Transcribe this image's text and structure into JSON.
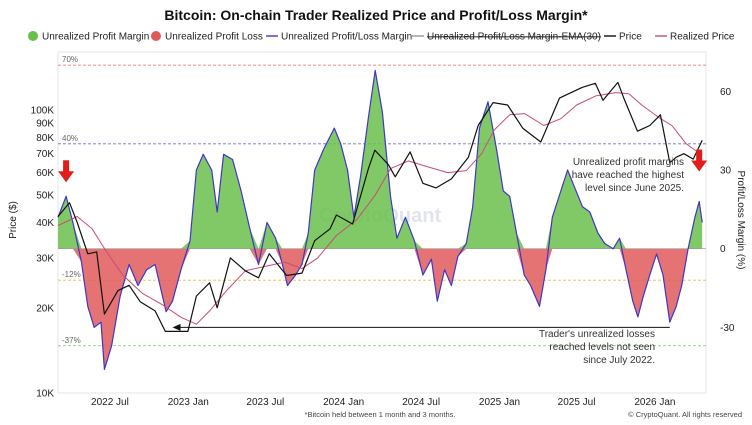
{
  "chart_data": {
    "type": "area",
    "title": "Bitcoin: On-chain Trader Realized Price and Profit/Loss Margin*",
    "footnote": "*Bitcoin held between 1 month and 3 months.",
    "credit": "© CryptoQuant. All rights reserved",
    "watermark": "CryptoQuant",
    "legend": [
      {
        "label": "Unrealized Profit Margin",
        "kind": "dot",
        "color": "#6abf4b"
      },
      {
        "label": "Unrealized Profit Loss",
        "kind": "dot",
        "color": "#e05a5a"
      },
      {
        "label": "Unrealized Profit/Loss Margin",
        "kind": "line",
        "color": "#3f35c9"
      },
      {
        "label": "Unrealized Profit/Loss Margin-EMA(30)",
        "kind": "line",
        "color": "#999999",
        "struck": true
      },
      {
        "label": "Price",
        "kind": "line",
        "color": "#111111"
      },
      {
        "label": "Realized Price",
        "kind": "line",
        "color": "#c44d7a"
      }
    ],
    "ylabel_left": "Price ($)",
    "ylabel_right": "Profit/Loss Margin (%)",
    "y_left": {
      "scale": "log",
      "min": 10000,
      "max": 160000,
      "ticks": [
        {
          "v": 10000,
          "label": "10K"
        },
        {
          "v": 20000,
          "label": "20K"
        },
        {
          "v": 30000,
          "label": "30K"
        },
        {
          "v": 40000,
          "label": "40K"
        },
        {
          "v": 50000,
          "label": "50K"
        },
        {
          "v": 60000,
          "label": "60K"
        },
        {
          "v": 70000,
          "label": "70K"
        },
        {
          "v": 80000,
          "label": "80K"
        },
        {
          "v": 90000,
          "label": "90K"
        },
        {
          "v": 100000,
          "label": "100K"
        }
      ]
    },
    "y_right": {
      "min": -55,
      "max": 75,
      "ticks": [
        {
          "v": 60,
          "label": "60"
        },
        {
          "v": 30,
          "label": "30"
        },
        {
          "v": 0,
          "label": "0"
        },
        {
          "v": -30,
          "label": "-30"
        }
      ]
    },
    "x_range": [
      "2022-03-01",
      "2026-05-01"
    ],
    "x_ticks": [
      {
        "date": "2022-07-01",
        "label": "2022 Jul"
      },
      {
        "date": "2023-01-01",
        "label": "2023 Jan"
      },
      {
        "date": "2023-07-01",
        "label": "2023 Jul"
      },
      {
        "date": "2024-01-01",
        "label": "2024 Jan"
      },
      {
        "date": "2024-07-01",
        "label": "2024 Jul"
      },
      {
        "date": "2025-01-01",
        "label": "2025 Jan"
      },
      {
        "date": "2025-07-01",
        "label": "2025 Jul"
      },
      {
        "date": "2026-01-01",
        "label": "2026 Jan"
      }
    ],
    "ref_lines": [
      {
        "v": 70,
        "label": "70%",
        "color": "#e06666"
      },
      {
        "v": 40,
        "label": "40%",
        "color": "#6b6fd6"
      },
      {
        "v": -12,
        "label": "-12%",
        "color": "#d9c24a"
      },
      {
        "v": -37,
        "label": "-37%",
        "color": "#7cc36a"
      }
    ],
    "annotations": [
      {
        "lines": [
          "Unrealized profit margins",
          "have reached the highest",
          "level since June 2025."
        ]
      },
      {
        "lines": [
          "Trader's unrealized losses",
          "reached levels not seen",
          "since July 2022."
        ]
      }
    ],
    "margin": {
      "name": "Unrealized Profit/Loss Margin",
      "points": [
        [
          "2022-03-01",
          12
        ],
        [
          "2022-03-20",
          20
        ],
        [
          "2022-04-05",
          10
        ],
        [
          "2022-04-25",
          -5
        ],
        [
          "2022-05-10",
          -22
        ],
        [
          "2022-05-25",
          -30
        ],
        [
          "2022-06-10",
          -28
        ],
        [
          "2022-06-18",
          -46
        ],
        [
          "2022-07-05",
          -37
        ],
        [
          "2022-07-25",
          -18
        ],
        [
          "2022-08-15",
          -6
        ],
        [
          "2022-09-05",
          -14
        ],
        [
          "2022-09-25",
          -8
        ],
        [
          "2022-10-15",
          -6
        ],
        [
          "2022-11-10",
          -24
        ],
        [
          "2022-11-25",
          -20
        ],
        [
          "2022-12-15",
          -8
        ],
        [
          "2023-01-05",
          3
        ],
        [
          "2023-01-20",
          30
        ],
        [
          "2023-02-05",
          36
        ],
        [
          "2023-02-25",
          30
        ],
        [
          "2023-03-10",
          14
        ],
        [
          "2023-03-25",
          36
        ],
        [
          "2023-04-15",
          34
        ],
        [
          "2023-05-05",
          22
        ],
        [
          "2023-05-25",
          8
        ],
        [
          "2023-06-15",
          -6
        ],
        [
          "2023-07-05",
          10
        ],
        [
          "2023-07-25",
          4
        ],
        [
          "2023-08-10",
          -6
        ],
        [
          "2023-08-22",
          -14
        ],
        [
          "2023-09-10",
          -10
        ],
        [
          "2023-09-25",
          -6
        ],
        [
          "2023-10-10",
          6
        ],
        [
          "2023-10-25",
          30
        ],
        [
          "2023-11-15",
          38
        ],
        [
          "2023-12-10",
          46
        ],
        [
          "2023-12-25",
          40
        ],
        [
          "2024-01-10",
          30
        ],
        [
          "2024-01-25",
          12
        ],
        [
          "2024-02-10",
          28
        ],
        [
          "2024-02-28",
          50
        ],
        [
          "2024-03-15",
          68
        ],
        [
          "2024-04-01",
          52
        ],
        [
          "2024-04-20",
          20
        ],
        [
          "2024-05-05",
          4
        ],
        [
          "2024-05-25",
          12
        ],
        [
          "2024-06-15",
          3
        ],
        [
          "2024-07-05",
          -10
        ],
        [
          "2024-07-25",
          -4
        ],
        [
          "2024-08-08",
          -20
        ],
        [
          "2024-08-25",
          -8
        ],
        [
          "2024-09-10",
          -14
        ],
        [
          "2024-09-25",
          -3
        ],
        [
          "2024-10-15",
          2
        ],
        [
          "2024-10-30",
          16
        ],
        [
          "2024-11-15",
          46
        ],
        [
          "2024-12-05",
          56
        ],
        [
          "2024-12-25",
          38
        ],
        [
          "2025-01-10",
          22
        ],
        [
          "2025-01-25",
          20
        ],
        [
          "2025-02-10",
          6
        ],
        [
          "2025-02-28",
          -10
        ],
        [
          "2025-03-15",
          -14
        ],
        [
          "2025-04-05",
          -22
        ],
        [
          "2025-04-20",
          -8
        ],
        [
          "2025-05-05",
          12
        ],
        [
          "2025-05-25",
          22
        ],
        [
          "2025-06-10",
          30
        ],
        [
          "2025-06-25",
          24
        ],
        [
          "2025-07-15",
          16
        ],
        [
          "2025-08-01",
          14
        ],
        [
          "2025-08-20",
          6
        ],
        [
          "2025-09-05",
          2
        ],
        [
          "2025-09-25",
          0
        ],
        [
          "2025-10-10",
          4
        ],
        [
          "2025-10-25",
          -8
        ],
        [
          "2025-11-10",
          -20
        ],
        [
          "2025-11-22",
          -26
        ],
        [
          "2025-12-05",
          -18
        ],
        [
          "2025-12-20",
          -10
        ],
        [
          "2026-01-05",
          -2
        ],
        [
          "2026-01-20",
          -10
        ],
        [
          "2026-02-05",
          -28
        ],
        [
          "2026-02-20",
          -22
        ],
        [
          "2026-03-05",
          -14
        ],
        [
          "2026-03-20",
          0
        ],
        [
          "2026-04-05",
          12
        ],
        [
          "2026-04-15",
          18
        ],
        [
          "2026-04-22",
          10
        ]
      ]
    },
    "price": {
      "name": "Price",
      "points": [
        [
          "2022-03-01",
          42000
        ],
        [
          "2022-03-28",
          47000
        ],
        [
          "2022-04-15",
          40000
        ],
        [
          "2022-05-10",
          31000
        ],
        [
          "2022-05-31",
          31500
        ],
        [
          "2022-06-18",
          19000
        ],
        [
          "2022-07-20",
          23000
        ],
        [
          "2022-08-15",
          24000
        ],
        [
          "2022-09-10",
          21000
        ],
        [
          "2022-10-15",
          19500
        ],
        [
          "2022-11-08",
          16500
        ],
        [
          "2022-12-31",
          16500
        ],
        [
          "2023-01-20",
          22000
        ],
        [
          "2023-02-20",
          24500
        ],
        [
          "2023-03-10",
          20000
        ],
        [
          "2023-04-10",
          30000
        ],
        [
          "2023-05-15",
          27000
        ],
        [
          "2023-06-15",
          25500
        ],
        [
          "2023-07-10",
          31000
        ],
        [
          "2023-08-20",
          26000
        ],
        [
          "2023-09-25",
          26500
        ],
        [
          "2023-10-25",
          34500
        ],
        [
          "2023-11-30",
          38000
        ],
        [
          "2023-12-15",
          42500
        ],
        [
          "2024-01-22",
          39500
        ],
        [
          "2024-02-28",
          62000
        ],
        [
          "2024-03-14",
          72000
        ],
        [
          "2024-04-15",
          64000
        ],
        [
          "2024-05-01",
          58000
        ],
        [
          "2024-06-05",
          71000
        ],
        [
          "2024-07-05",
          55000
        ],
        [
          "2024-08-05",
          53000
        ],
        [
          "2024-09-10",
          57000
        ],
        [
          "2024-10-20",
          68000
        ],
        [
          "2024-11-12",
          88000
        ],
        [
          "2024-12-17",
          106000
        ],
        [
          "2025-01-20",
          104000
        ],
        [
          "2025-02-25",
          86000
        ],
        [
          "2025-04-08",
          77000
        ],
        [
          "2025-05-22",
          110000
        ],
        [
          "2025-07-14",
          120000
        ],
        [
          "2025-08-14",
          124000
        ],
        [
          "2025-09-01",
          108000
        ],
        [
          "2025-10-06",
          125000
        ],
        [
          "2025-10-20",
          110000
        ],
        [
          "2025-11-21",
          84000
        ],
        [
          "2025-12-20",
          88000
        ],
        [
          "2026-01-14",
          96000
        ],
        [
          "2026-02-05",
          65000
        ],
        [
          "2026-02-20",
          68000
        ],
        [
          "2026-03-10",
          70000
        ],
        [
          "2026-04-01",
          67000
        ],
        [
          "2026-04-22",
          78000
        ]
      ]
    },
    "realized_price": {
      "name": "Realized Price",
      "points": [
        [
          "2022-03-01",
          39000
        ],
        [
          "2022-04-15",
          42000
        ],
        [
          "2022-05-20",
          38000
        ],
        [
          "2022-06-20",
          32000
        ],
        [
          "2022-08-01",
          26000
        ],
        [
          "2022-09-15",
          22500
        ],
        [
          "2022-11-01",
          20500
        ],
        [
          "2022-12-15",
          18500
        ],
        [
          "2023-01-20",
          17500
        ],
        [
          "2023-02-20",
          19500
        ],
        [
          "2023-04-01",
          23000
        ],
        [
          "2023-05-15",
          27000
        ],
        [
          "2023-07-01",
          28000
        ],
        [
          "2023-08-15",
          29000
        ],
        [
          "2023-09-25",
          27500
        ],
        [
          "2023-11-01",
          30000
        ],
        [
          "2023-12-15",
          36000
        ],
        [
          "2024-02-01",
          41000
        ],
        [
          "2024-03-15",
          50000
        ],
        [
          "2024-04-20",
          62000
        ],
        [
          "2024-06-01",
          66000
        ],
        [
          "2024-07-15",
          63000
        ],
        [
          "2024-09-01",
          60000
        ],
        [
          "2024-10-15",
          61000
        ],
        [
          "2024-11-20",
          70000
        ],
        [
          "2024-12-20",
          85000
        ],
        [
          "2025-01-25",
          96000
        ],
        [
          "2025-03-01",
          97000
        ],
        [
          "2025-04-15",
          88000
        ],
        [
          "2025-05-25",
          93000
        ],
        [
          "2025-07-01",
          104000
        ],
        [
          "2025-08-15",
          112000
        ],
        [
          "2025-10-01",
          115000
        ],
        [
          "2025-11-01",
          114000
        ],
        [
          "2025-12-01",
          104000
        ],
        [
          "2026-01-10",
          94000
        ],
        [
          "2026-02-10",
          88000
        ],
        [
          "2026-03-15",
          76000
        ],
        [
          "2026-04-22",
          69000
        ]
      ]
    }
  }
}
